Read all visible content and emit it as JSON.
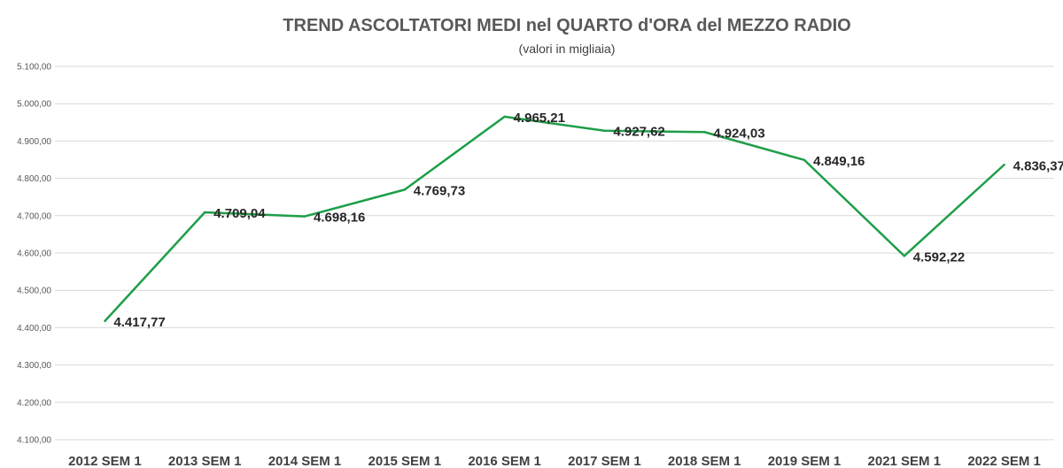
{
  "chart_data": {
    "type": "line",
    "title": "TREND ASCOLTATORI MEDI nel QUARTO d'ORA del MEZZO RADIO",
    "subtitle": "(valori in migliaia)",
    "xlabel": "",
    "ylabel": "",
    "ylim": [
      4100,
      5100
    ],
    "yticks": [
      4100,
      4200,
      4300,
      4400,
      4500,
      4600,
      4700,
      4800,
      4900,
      5000,
      5100
    ],
    "ytick_labels": [
      "4.100,00",
      "4.200,00",
      "4.300,00",
      "4.400,00",
      "4.500,00",
      "4.600,00",
      "4.700,00",
      "4.800,00",
      "4.900,00",
      "5.000,00",
      "5.100,00"
    ],
    "grid": true,
    "legend": "none",
    "categories": [
      "2012 SEM 1",
      "2013 SEM 1",
      "2014 SEM 1",
      "2015 SEM 1",
      "2016 SEM 1",
      "2017 SEM 1",
      "2018 SEM 1",
      "2019 SEM 1",
      "2021 SEM 1",
      "2022 SEM 1"
    ],
    "series": [
      {
        "values": [
          4417.77,
          4709.04,
          4698.16,
          4769.73,
          4965.21,
          4927.62,
          4924.03,
          4849.16,
          4592.22,
          4836.37
        ],
        "data_labels": [
          "4.417,77",
          "4.709,04",
          "4.698,16",
          "4.769,73",
          "4.965,21",
          "4.927,62",
          "4.924,03",
          "4.849,16",
          "4.592,22",
          "4.836,37"
        ],
        "color": "#1e9e48"
      }
    ]
  }
}
